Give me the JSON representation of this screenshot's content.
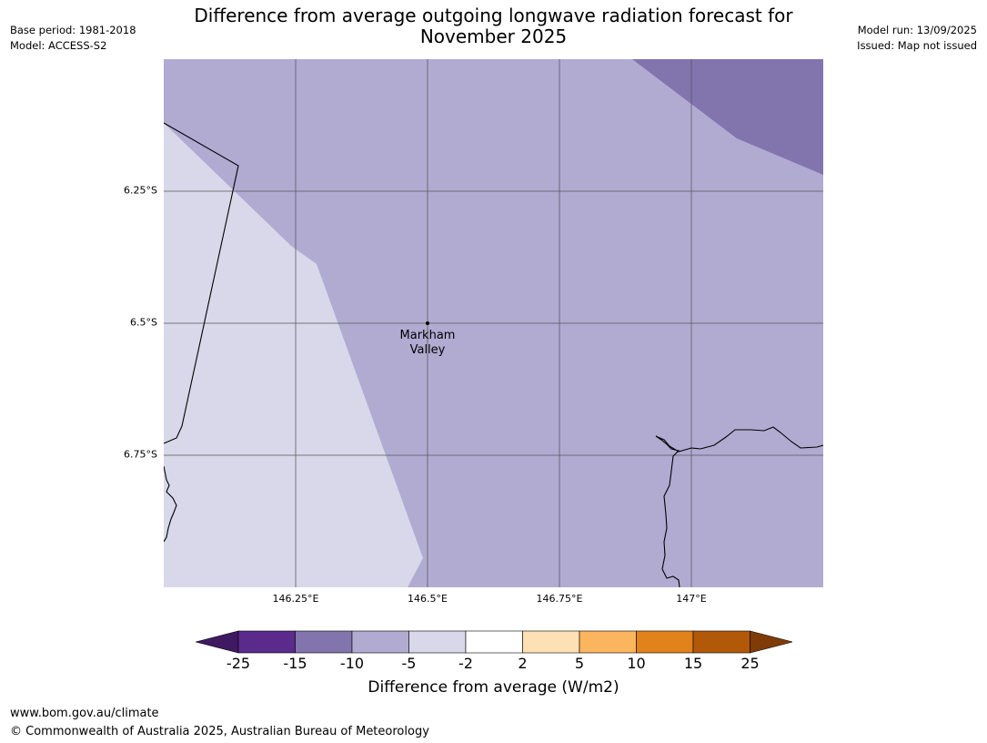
{
  "title_line1": "Difference from average outgoing longwave radiation forecast for",
  "title_line2": "November 2025",
  "meta_left": {
    "base_period": "Base period: 1981-2018",
    "model": "Model: ACCESS-S2"
  },
  "meta_right": {
    "model_run": "Model run: 13/09/2025",
    "issued": "Issued: Map not issued"
  },
  "map": {
    "place_name_line1": "Markham",
    "place_name_line2": "Valley",
    "lat_labels": [
      "6.25°S",
      "6.5°S",
      "6.75°S"
    ],
    "lon_labels": [
      "146.25°E",
      "146.5°E",
      "146.75°E",
      "147°E"
    ]
  },
  "colorbar": {
    "ticks": [
      "-25",
      "-15",
      "-10",
      "-5",
      "-2",
      "2",
      "5",
      "10",
      "15",
      "25"
    ],
    "colors": [
      "#3f1a62",
      "#5a2a8c",
      "#8274ad",
      "#b1abd2",
      "#d8d8ea",
      "#ffffff",
      "#fee0b5",
      "#fbb55f",
      "#e1821a",
      "#b15909",
      "#7f3b08"
    ],
    "label": "Difference from average (W/m2)"
  },
  "footer": {
    "url": "www.bom.gov.au/climate",
    "copyright": "© Commonwealth of Australia 2025, Australian Bureau of Meteorology"
  }
}
